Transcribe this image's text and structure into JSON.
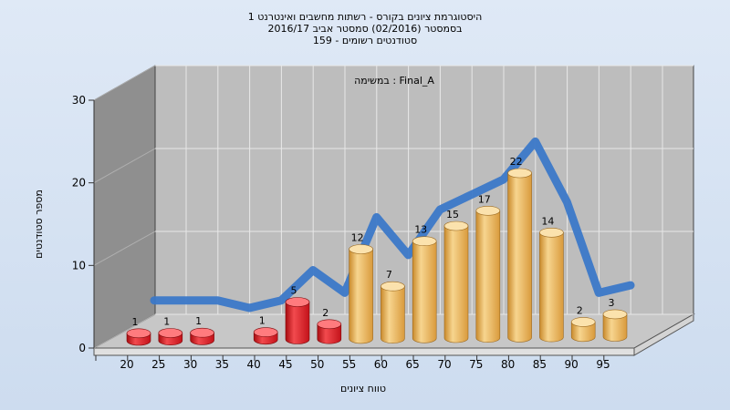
{
  "chart_data": {
    "type": "bar",
    "title_lines": [
      "היסטוגרמת ציונים בקורס - רשתות מחשבים ואינטרנט 1",
      "בסמסטר  (02/2016)  סמסטר אביב 2016/17",
      "סטודנטים רשומים - 159"
    ],
    "task_label": "במשימה : Final_A",
    "xlabel": "טווח ציונים",
    "ylabel": "מספר סטודנטים",
    "ylim": [
      0,
      30
    ],
    "yticks": [
      0,
      10,
      20,
      30
    ],
    "categories": [
      "20",
      "25",
      "30",
      "35",
      "40",
      "45",
      "50",
      "55",
      "60",
      "65",
      "70",
      "75",
      "80",
      "85",
      "90",
      "95"
    ],
    "values": [
      1,
      1,
      1,
      0,
      1,
      5,
      2,
      12,
      7,
      13,
      15,
      17,
      22,
      14,
      2,
      3
    ],
    "fail_threshold": 55,
    "colors": {
      "fail": "#e2151b",
      "pass": "#f0b55a",
      "trend": "#3b78c8",
      "wall": "#8f8f8f",
      "floor": "#c7c7c7",
      "back": "#bdbdbd"
    }
  }
}
